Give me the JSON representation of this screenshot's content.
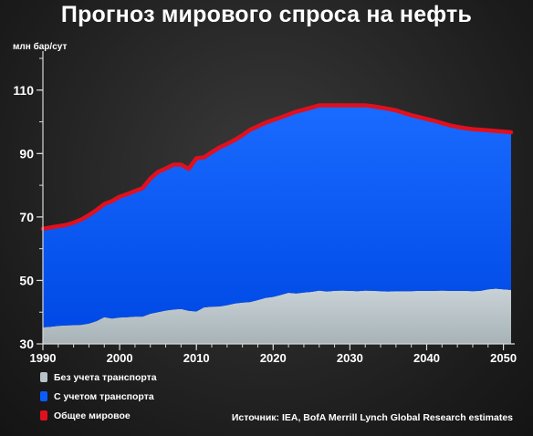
{
  "title": "Прогноз мирового спроса на нефть",
  "source": "Источник: IEA, BofA Merrill Lynch Global Research estimates",
  "colors": {
    "non_transport": "#b9c4c8",
    "transport": "#0a5cff",
    "total_line": "#e0101e",
    "axis": "#d8d8d8"
  },
  "chart_data": {
    "type": "area",
    "title": "Прогноз мирового спроса на нефть",
    "ylabel": "млн бар/сут",
    "xlabel": "",
    "xlim": [
      1990,
      2051
    ],
    "ylim": [
      30,
      120
    ],
    "x_ticks": [
      1990,
      2000,
      2010,
      2020,
      2030,
      2040,
      2050
    ],
    "y_ticks": [
      30,
      50,
      70,
      90,
      110
    ],
    "stacked": true,
    "grid": false,
    "legend_position": "bottom-left",
    "x": [
      1990,
      1991,
      1992,
      1993,
      1994,
      1995,
      1996,
      1997,
      1998,
      1999,
      2000,
      2001,
      2002,
      2003,
      2004,
      2005,
      2006,
      2007,
      2008,
      2009,
      2010,
      2011,
      2012,
      2013,
      2014,
      2015,
      2016,
      2017,
      2018,
      2019,
      2020,
      2021,
      2022,
      2023,
      2024,
      2025,
      2026,
      2027,
      2028,
      2029,
      2030,
      2031,
      2032,
      2033,
      2034,
      2035,
      2036,
      2037,
      2038,
      2039,
      2040,
      2041,
      2042,
      2043,
      2044,
      2045,
      2046,
      2047,
      2048,
      2049,
      2050,
      2051
    ],
    "series": [
      {
        "name": "Без учета транспорта",
        "color": "#b9c4c8",
        "values": [
          35.2,
          35.4,
          35.7,
          35.8,
          35.9,
          36.0,
          36.4,
          37.2,
          38.4,
          38.0,
          38.3,
          38.4,
          38.6,
          38.6,
          39.5,
          40.0,
          40.5,
          40.8,
          41.0,
          40.4,
          40.2,
          41.5,
          41.7,
          41.8,
          42.2,
          42.7,
          43.0,
          43.2,
          43.8,
          44.5,
          44.8,
          45.4,
          46.1,
          45.9,
          46.2,
          46.4,
          46.8,
          46.5,
          46.7,
          46.8,
          46.7,
          46.6,
          46.8,
          46.7,
          46.6,
          46.5,
          46.6,
          46.6,
          46.6,
          46.7,
          46.7,
          46.7,
          46.8,
          46.7,
          46.7,
          46.7,
          46.6,
          46.7,
          47.2,
          47.4,
          47.2,
          47.0
        ]
      },
      {
        "name": "С учетом транспорта",
        "color": "#0a5cff",
        "values": [
          66.3,
          66.7,
          67.1,
          67.5,
          68.2,
          69.2,
          70.6,
          72.2,
          74.1,
          75.0,
          76.4,
          77.2,
          78.2,
          79.1,
          82.1,
          84.2,
          85.3,
          86.5,
          86.5,
          85.2,
          88.5,
          88.8,
          90.4,
          91.9,
          93.0,
          94.3,
          95.8,
          97.5,
          98.6,
          99.7,
          100.6,
          101.4,
          102.3,
          103.2,
          103.8,
          104.5,
          105.2,
          105.2,
          105.2,
          105.2,
          105.2,
          105.2,
          105.2,
          104.9,
          104.5,
          104.1,
          103.6,
          102.8,
          102.1,
          101.5,
          100.9,
          100.3,
          99.6,
          98.9,
          98.4,
          98.0,
          97.7,
          97.5,
          97.3,
          97.1,
          96.9,
          96.7
        ]
      },
      {
        "name": "Общее мировое",
        "color": "#e0101e",
        "values": [
          66.3,
          66.7,
          67.1,
          67.5,
          68.2,
          69.2,
          70.6,
          72.2,
          74.1,
          75.0,
          76.4,
          77.2,
          78.2,
          79.1,
          82.1,
          84.2,
          85.3,
          86.5,
          86.5,
          85.2,
          88.5,
          88.8,
          90.4,
          91.9,
          93.0,
          94.3,
          95.8,
          97.5,
          98.6,
          99.7,
          100.6,
          101.4,
          102.3,
          103.2,
          103.8,
          104.5,
          105.2,
          105.2,
          105.2,
          105.2,
          105.2,
          105.2,
          105.2,
          104.9,
          104.5,
          104.1,
          103.6,
          102.8,
          102.1,
          101.5,
          100.9,
          100.3,
          99.6,
          98.9,
          98.4,
          98.0,
          97.7,
          97.5,
          97.3,
          97.1,
          96.9,
          96.7
        ]
      }
    ]
  }
}
